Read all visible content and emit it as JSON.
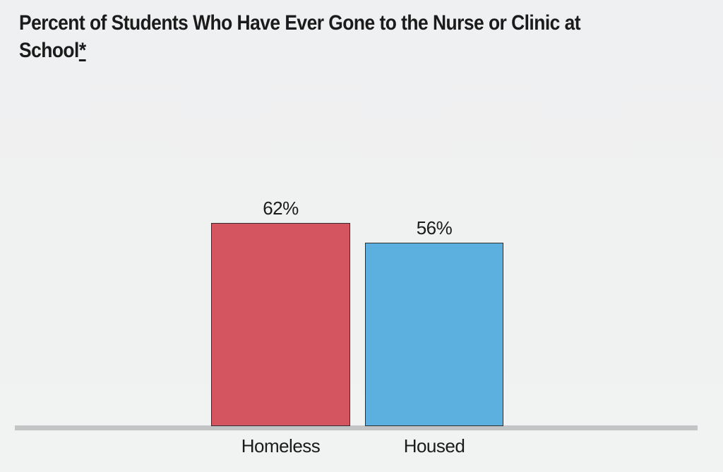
{
  "title": {
    "line1": "Percent of Students Who Have Ever Gone to the Nurse or Clinic at",
    "line2": "School",
    "footnote_marker": "*",
    "color": "#1b1b1b"
  },
  "chart_data": {
    "type": "bar",
    "title": "Percent of Students Who Have Ever Gone to the Nurse or Clinic at School*",
    "categories": [
      "Homeless",
      "Housed"
    ],
    "values": [
      62,
      56
    ],
    "value_labels": [
      "62%",
      "56%"
    ],
    "series_colors": [
      "#d4555f",
      "#5cb0e0"
    ],
    "bar_border_color": "#2f2f2f",
    "xlabel": "",
    "ylabel": "",
    "ylim": [
      0,
      100
    ],
    "grid": false,
    "legend": false,
    "data_label_position": "above-bar",
    "axis_line_color": "#c2c4c6",
    "background_color": "#f0f0f1"
  }
}
